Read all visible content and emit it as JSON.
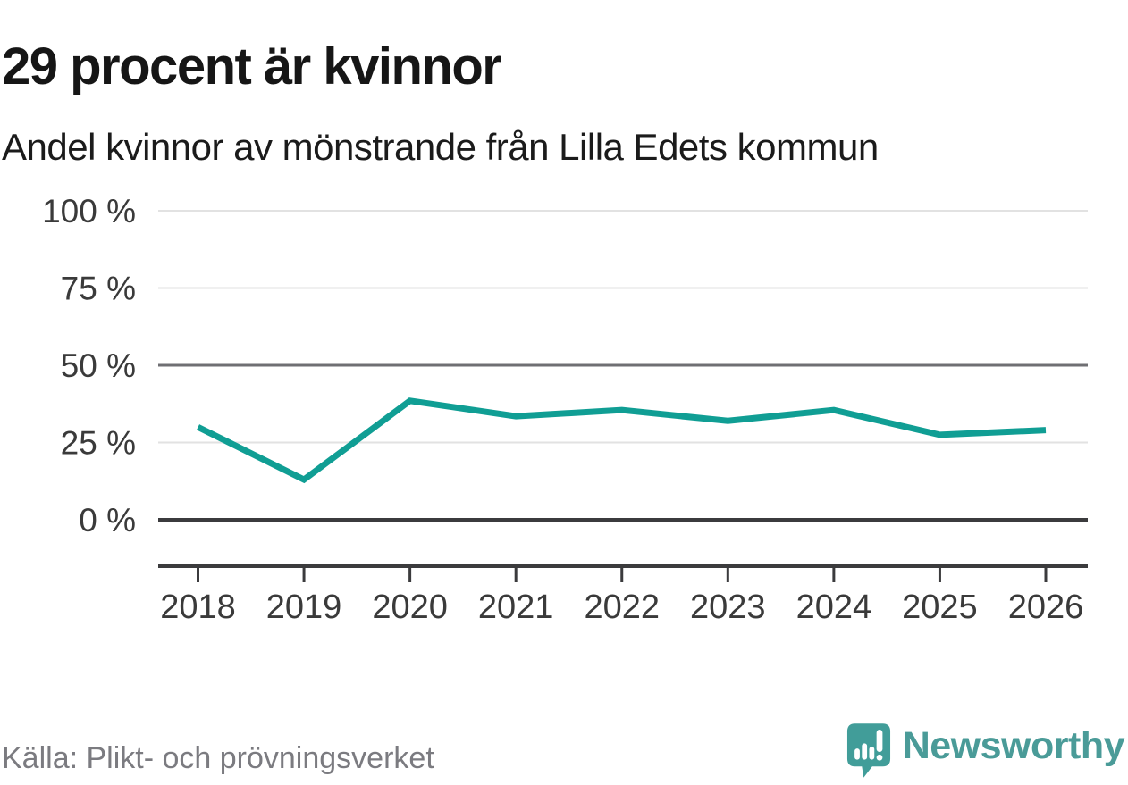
{
  "chart_data": {
    "type": "line",
    "title": "29 procent är kvinnor",
    "subtitle": "Andel kvinnor av mönstrande från Lilla Edets kommun",
    "x": [
      "2018",
      "2019",
      "2020",
      "2021",
      "2022",
      "2023",
      "2024",
      "2025",
      "2026"
    ],
    "series": [
      {
        "name": "Andel kvinnor av mönstrande",
        "values": [
          30,
          13,
          38.5,
          33.5,
          35.5,
          32,
          35.5,
          27.5,
          29
        ],
        "color": "#109e94"
      }
    ],
    "unit": "%",
    "ylim": [
      0,
      100
    ],
    "yticks": [
      0,
      25,
      50,
      75,
      100
    ],
    "ytick_labels": [
      "0 %",
      "25 %",
      "50 %",
      "75 %",
      "100 %"
    ],
    "xtick_labels": [
      "2018",
      "2019",
      "2020",
      "2021",
      "2022",
      "2023",
      "2024",
      "2025",
      "2026"
    ],
    "xlabel": "",
    "ylabel": "",
    "legend": "none",
    "grid": "horizontal-only",
    "gridline_color": "#e2e2e2",
    "midline_color": "#6f6f73",
    "baseline_color": "#3b3b3d",
    "axis_color": "#3b3b3d",
    "axis_text_color": "#3a3a3a",
    "line_width": 7
  },
  "footer": {
    "source": "Källa: Plikt- och prövningsverket",
    "brand_name": "Newsworthy",
    "brand_color": "#4a9b98",
    "logo_icon": "speech-bubble-bar-chart-exclamation-icon"
  }
}
